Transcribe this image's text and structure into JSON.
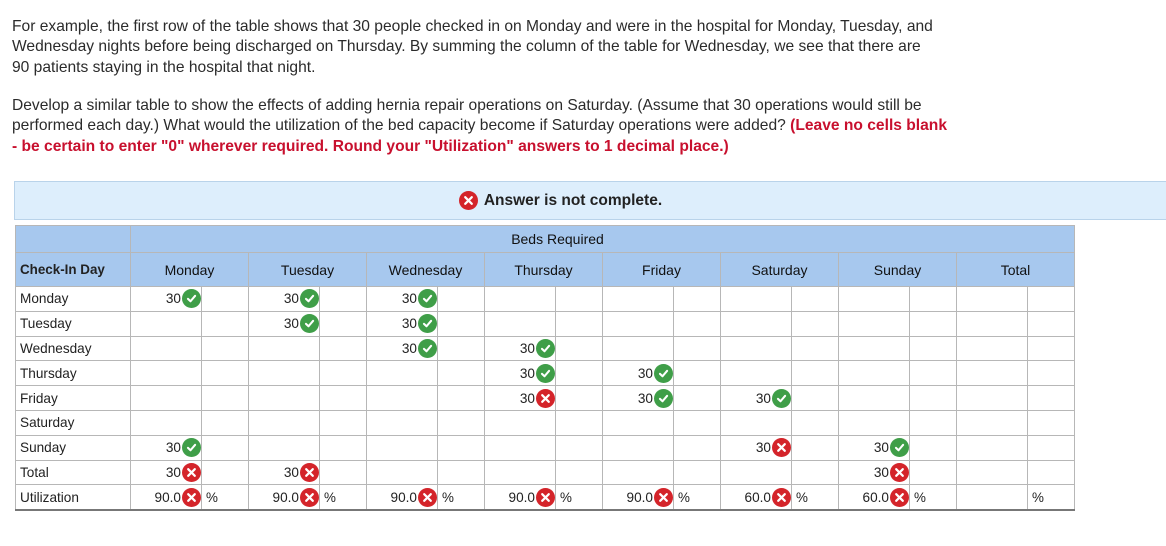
{
  "instructions": {
    "p1_line1": "For example, the first row of the table shows that 30 people checked in on Monday and were in the hospital for Monday, Tuesday, and",
    "p1_line2": "Wednesday nights before being discharged on Thursday. By summing the column of the table for Wednesday, we see that there are",
    "p1_line3": "90 patients staying in the hospital that night.",
    "p2_line1": "Develop a similar table to show the effects of adding hernia repair operations on Saturday. (Assume that 30 operations would still be",
    "p2_line2_plain": "performed each day.) What would the utilization of the bed capacity become if Saturday operations were added?",
    "p2_line2_bold": "(Leave no cells blank",
    "p2_line3_bold": "- be certain to enter \"0\" wherever required. Round your \"Utilization\" answers to 1 decimal place.)"
  },
  "banner": {
    "text": "Answer is not complete.",
    "icon": "x-circle-icon"
  },
  "table": {
    "group_header": "Beds Required",
    "checkin_header": "Check-In Day",
    "days": [
      "Monday",
      "Tuesday",
      "Wednesday",
      "Thursday",
      "Friday",
      "Saturday",
      "Sunday"
    ],
    "total_header": "Total",
    "percent_sign": "%",
    "rows": [
      {
        "label": "Monday",
        "cells": [
          {
            "v": "30",
            "s": "correct"
          },
          {
            "v": "30",
            "s": "correct"
          },
          {
            "v": "30",
            "s": "correct"
          },
          null,
          null,
          null,
          null
        ],
        "total": null
      },
      {
        "label": "Tuesday",
        "cells": [
          null,
          {
            "v": "30",
            "s": "correct"
          },
          {
            "v": "30",
            "s": "correct"
          },
          null,
          null,
          null,
          null
        ],
        "total": null
      },
      {
        "label": "Wednesday",
        "cells": [
          null,
          null,
          {
            "v": "30",
            "s": "correct"
          },
          {
            "v": "30",
            "s": "correct"
          },
          null,
          null,
          null
        ],
        "total": null
      },
      {
        "label": "Thursday",
        "cells": [
          null,
          null,
          null,
          {
            "v": "30",
            "s": "correct"
          },
          {
            "v": "30",
            "s": "correct"
          },
          null,
          null
        ],
        "total": null
      },
      {
        "label": "Friday",
        "cells": [
          null,
          null,
          null,
          {
            "v": "30",
            "s": "incorrect"
          },
          {
            "v": "30",
            "s": "correct"
          },
          {
            "v": "30",
            "s": "correct"
          },
          null
        ],
        "total": null
      },
      {
        "label": "Saturday",
        "cells": [
          null,
          null,
          null,
          null,
          null,
          null,
          null
        ],
        "total": null
      },
      {
        "label": "Sunday",
        "cells": [
          {
            "v": "30",
            "s": "correct"
          },
          null,
          null,
          null,
          null,
          {
            "v": "30",
            "s": "incorrect"
          },
          {
            "v": "30",
            "s": "correct"
          }
        ],
        "total": null
      },
      {
        "label": "Total",
        "cells": [
          {
            "v": "30",
            "s": "incorrect"
          },
          {
            "v": "30",
            "s": "incorrect"
          },
          null,
          null,
          null,
          null,
          {
            "v": "30",
            "s": "incorrect"
          }
        ],
        "total": null
      }
    ],
    "utilization": {
      "label": "Utilization",
      "cells": [
        {
          "v": "90.0",
          "s": "incorrect"
        },
        {
          "v": "90.0",
          "s": "incorrect"
        },
        {
          "v": "90.0",
          "s": "incorrect"
        },
        {
          "v": "90.0",
          "s": "incorrect"
        },
        {
          "v": "90.0",
          "s": "incorrect"
        },
        {
          "v": "60.0",
          "s": "incorrect"
        },
        {
          "v": "60.0",
          "s": "incorrect"
        }
      ],
      "total": null
    }
  },
  "colors": {
    "correct": "#3f9e48",
    "incorrect": "#d4242a",
    "header_bg": "#a7c8ee",
    "banner_bg": "#ddeefc",
    "instruction_red": "#c8102e"
  }
}
